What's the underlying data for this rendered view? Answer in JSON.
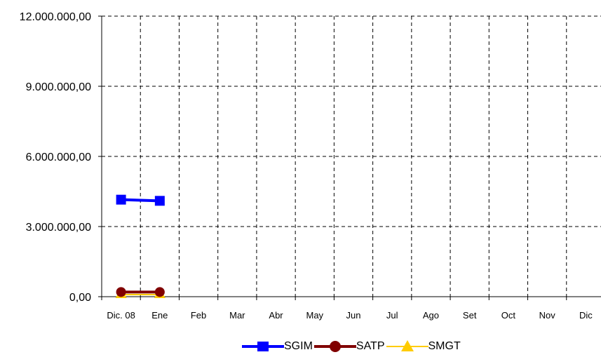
{
  "chart_data": {
    "type": "line",
    "categories": [
      "Dic. 08",
      "Ene",
      "Feb",
      "Mar",
      "Abr",
      "May",
      "Jun",
      "Jul",
      "Ago",
      "Set",
      "Oct",
      "Nov",
      "Dic"
    ],
    "y_ticks": [
      "0,00",
      "3.000.000,00",
      "6.000.000,00",
      "9.000.000,00",
      "12.000.000,00"
    ],
    "ylim": [
      0,
      12000000
    ],
    "grid": true,
    "legend_position": "bottom",
    "series": [
      {
        "name": "SGIM",
        "color": "#0000FF",
        "marker": "square",
        "values": [
          4150000,
          4100000,
          null,
          null,
          null,
          null,
          null,
          null,
          null,
          null,
          null,
          null,
          null
        ]
      },
      {
        "name": "SATP",
        "color": "#800000",
        "marker": "circle",
        "values": [
          200000,
          200000,
          null,
          null,
          null,
          null,
          null,
          null,
          null,
          null,
          null,
          null,
          null
        ]
      },
      {
        "name": "SMGT",
        "color": "#FFCC00",
        "marker": "triangle",
        "values": [
          90000,
          90000,
          null,
          null,
          null,
          null,
          null,
          null,
          null,
          null,
          null,
          null,
          null
        ]
      }
    ]
  }
}
